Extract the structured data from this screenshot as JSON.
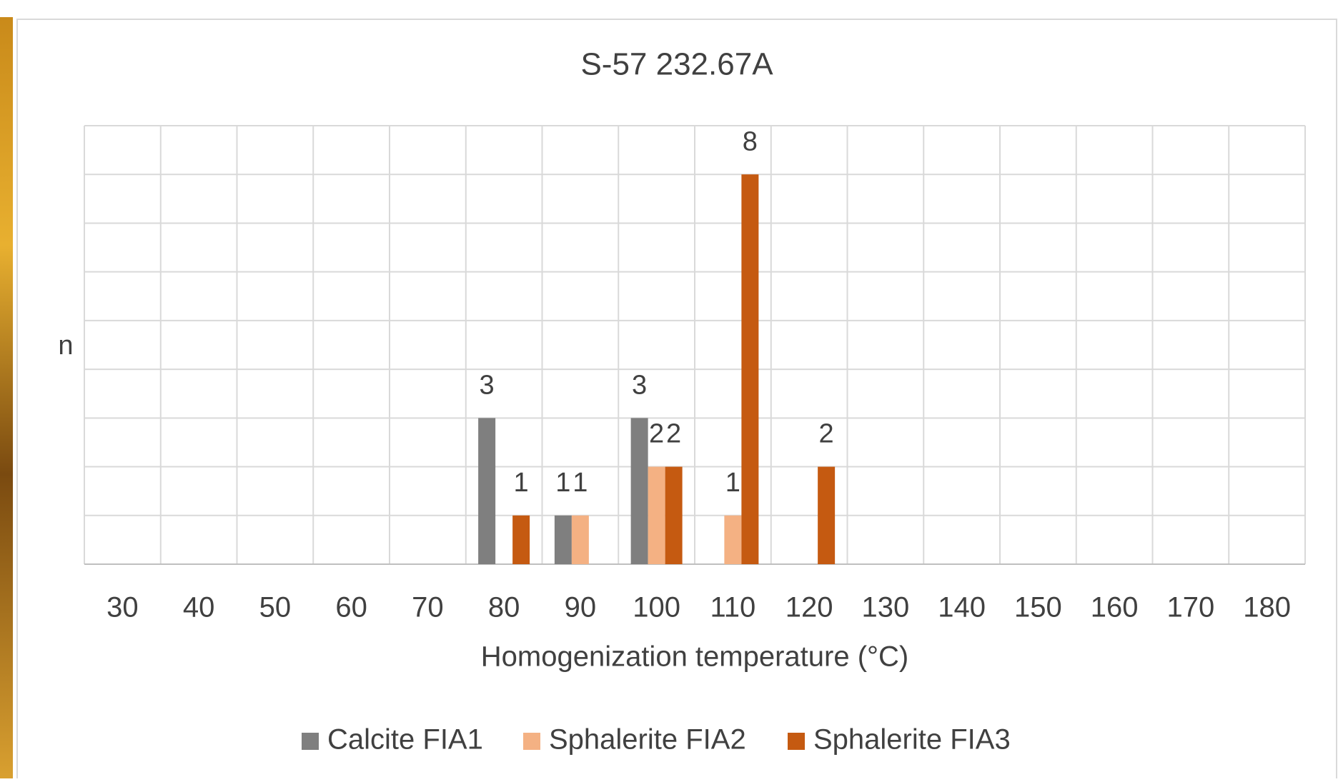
{
  "chart_data": {
    "type": "bar",
    "title": "S-57 232.67A",
    "x_label": "Homogenization temperature (°C)",
    "y_label": "n",
    "categories": [
      30,
      40,
      50,
      60,
      70,
      80,
      90,
      100,
      110,
      120,
      130,
      140,
      150,
      160,
      170,
      180
    ],
    "series": [
      {
        "name": "Calcite FIA1",
        "color": "#7f7f7f",
        "values": [
          null,
          null,
          null,
          null,
          null,
          3,
          1,
          3,
          null,
          null,
          null,
          null,
          null,
          null,
          null,
          null
        ]
      },
      {
        "name": "Sphalerite FIA2",
        "color": "#f4b183",
        "values": [
          null,
          null,
          null,
          null,
          null,
          null,
          1,
          2,
          1,
          null,
          null,
          null,
          null,
          null,
          null,
          null
        ]
      },
      {
        "name": "Sphalerite FIA3",
        "color": "#c55a11",
        "values": [
          null,
          null,
          null,
          null,
          null,
          1,
          null,
          2,
          8,
          2,
          null,
          null,
          null,
          null,
          null,
          null
        ]
      }
    ],
    "ylim": [
      0,
      9
    ],
    "grid": true,
    "legend": "bottom"
  }
}
